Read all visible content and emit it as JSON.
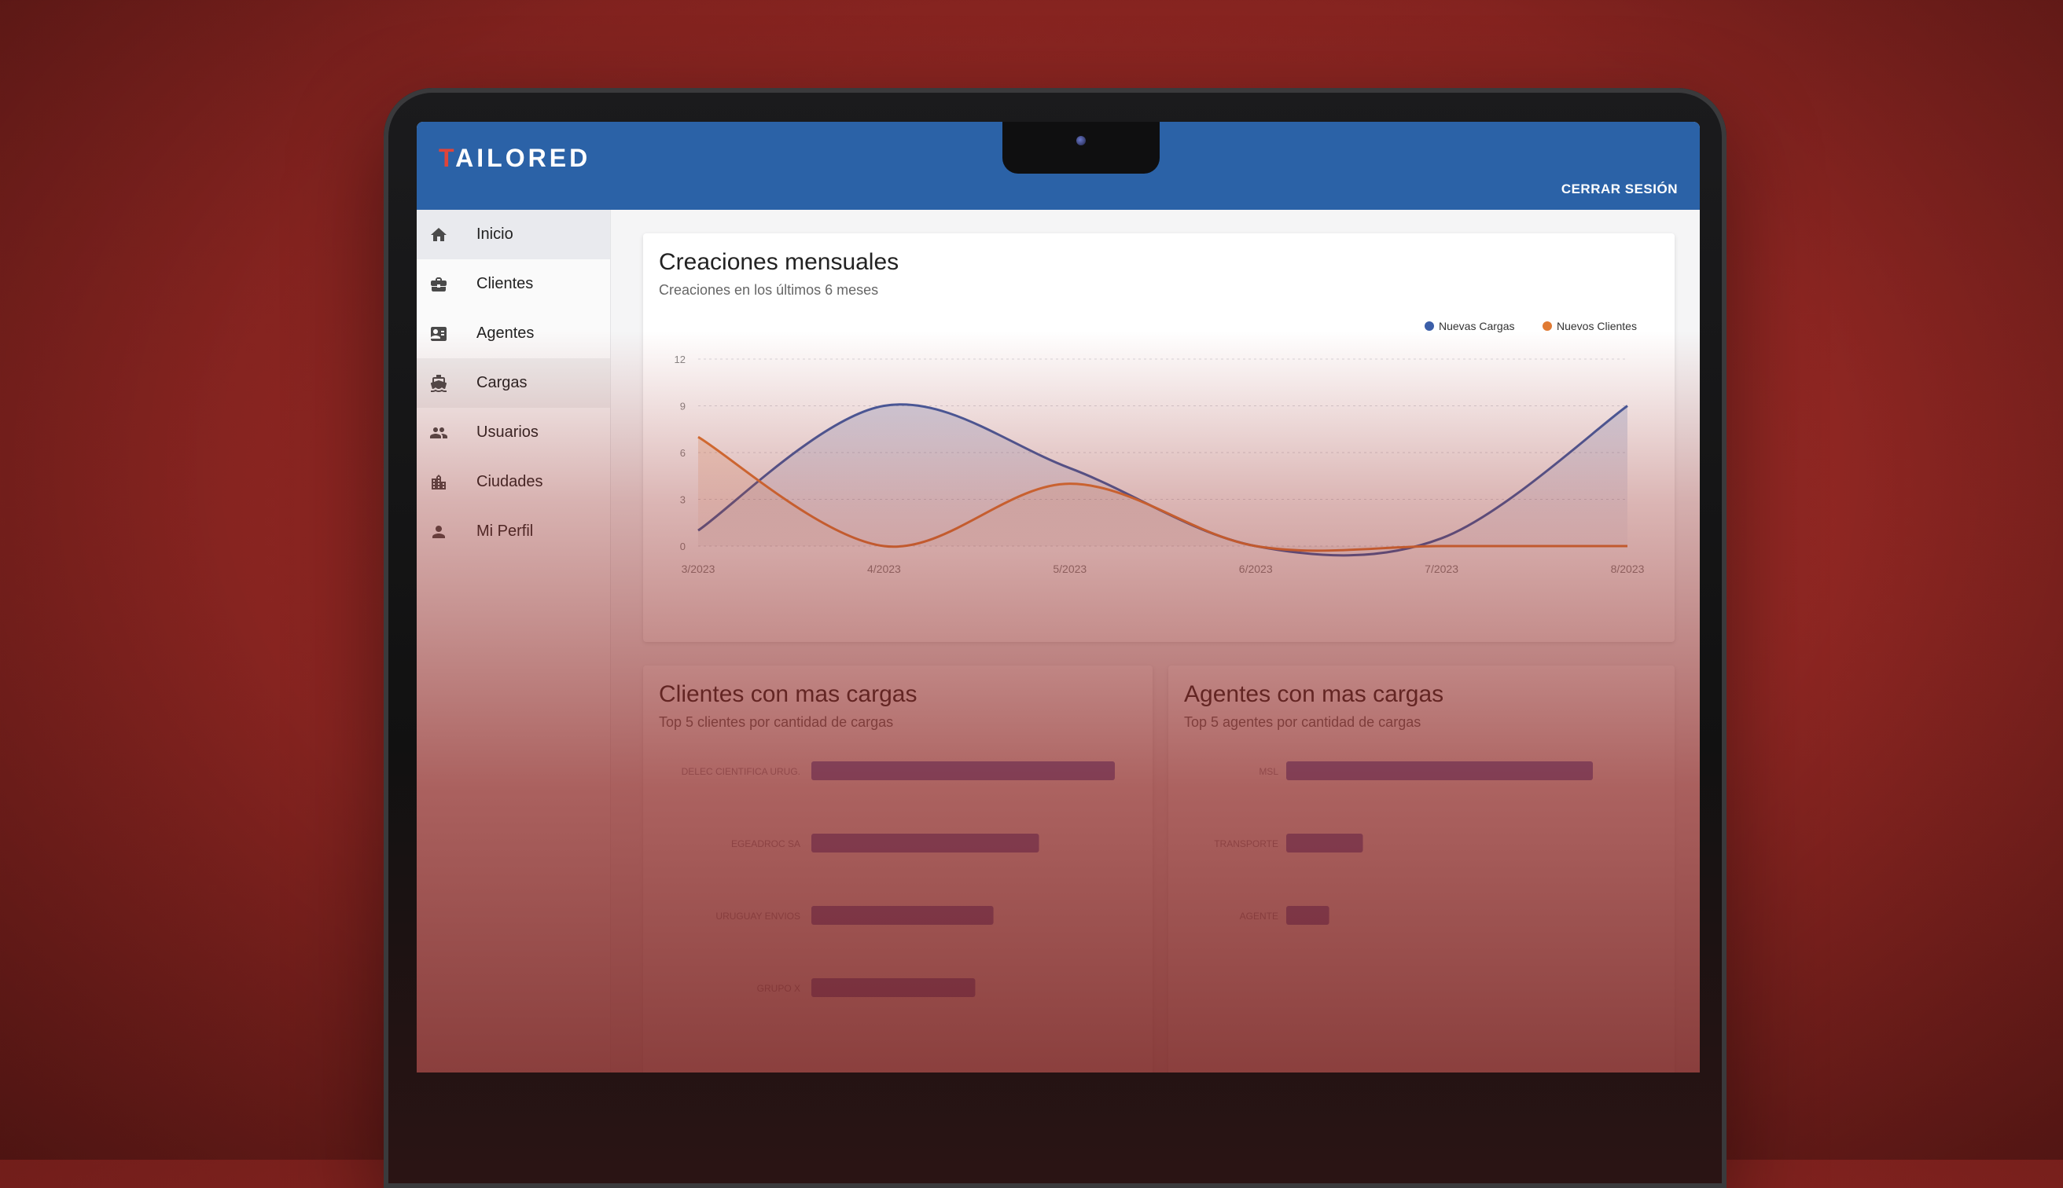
{
  "app": {
    "logo": "AILORED",
    "logo_mark": "T"
  },
  "header": {
    "logout_label": "CERRAR SESIÓN"
  },
  "sidebar": {
    "items": [
      {
        "label": "Inicio",
        "icon": "home-icon"
      },
      {
        "label": "Clientes",
        "icon": "briefcase-icon"
      },
      {
        "label": "Agentes",
        "icon": "contact-card-icon"
      },
      {
        "label": "Cargas",
        "icon": "ship-icon"
      },
      {
        "label": "Usuarios",
        "icon": "people-icon"
      },
      {
        "label": "Ciudades",
        "icon": "city-icon"
      },
      {
        "label": "Mi Perfil",
        "icon": "person-icon"
      }
    ]
  },
  "colors": {
    "appbar": "#2b62a7",
    "series_blue": "#3b5ea8",
    "series_orange": "#e07a33",
    "bar": "#6a78c9"
  },
  "monthly": {
    "title": "Creaciones mensuales",
    "subtitle": "Creaciones en los últimos 6 meses",
    "legend": [
      "Nuevas Cargas",
      "Nuevos Clientes"
    ]
  },
  "top_clients": {
    "title": "Clientes con mas cargas",
    "subtitle": "Top 5 clientes por cantidad de cargas"
  },
  "top_agents": {
    "title": "Agentes con mas cargas",
    "subtitle": "Top 5 agentes por cantidad de cargas"
  },
  "chart_data": [
    {
      "type": "area",
      "categories": [
        "3/2023",
        "4/2023",
        "5/2023",
        "6/2023",
        "7/2023",
        "8/2023"
      ],
      "series": [
        {
          "name": "Nuevas Cargas",
          "values": [
            1,
            9,
            5,
            0,
            0.5,
            9
          ]
        },
        {
          "name": "Nuevos Clientes",
          "values": [
            7,
            0,
            4,
            0,
            0,
            0
          ]
        }
      ],
      "yticks": [
        0,
        3,
        6,
        9,
        12
      ],
      "ylim": [
        0,
        12
      ],
      "grid": true,
      "legend": "top-right"
    },
    {
      "type": "bar",
      "orientation": "horizontal",
      "categories": [
        "DELEC CIENTIFICA URUG.",
        "EGEADROC SA",
        "URUGUAY ENVIOS",
        "GRUPO X"
      ],
      "values": [
        10,
        7.5,
        6,
        5.4
      ]
    },
    {
      "type": "bar",
      "orientation": "horizontal",
      "categories": [
        "MSL",
        "TRANSPORTE",
        "AGENTE"
      ],
      "values": [
        10,
        2.5,
        1.4
      ]
    }
  ]
}
